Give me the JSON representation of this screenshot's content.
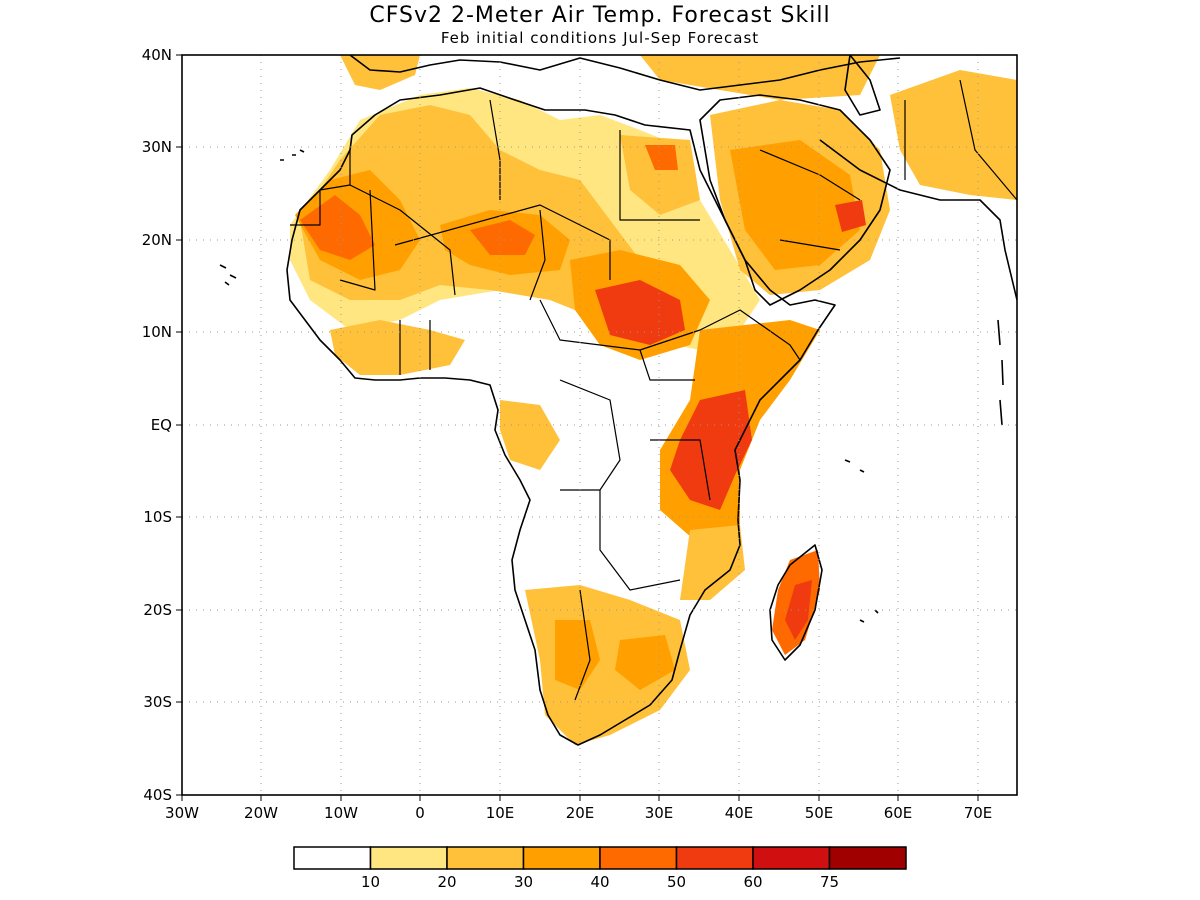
{
  "title": "CFSv2 2-Meter Air Temp. Forecast Skill",
  "subtitle": "Feb initial conditions  Jul-Sep Forecast",
  "lat_ticks": [
    "40N",
    "30N",
    "20N",
    "10N",
    "EQ",
    "10S",
    "20S",
    "30S",
    "40S"
  ],
  "lon_ticks": [
    "30W",
    "20W",
    "10W",
    "0",
    "10E",
    "20E",
    "30E",
    "40E",
    "50E",
    "60E",
    "70E"
  ],
  "colorbar": {
    "labels": [
      "10",
      "20",
      "30",
      "40",
      "50",
      "60",
      "75"
    ],
    "colors": [
      "#ffffff",
      "#ffe680",
      "#ffc03a",
      "#ffa000",
      "#ff6a00",
      "#f03a10",
      "#d01010",
      "#a00000"
    ]
  },
  "skill_regions": [
    {
      "name": "sahara-sahel-west",
      "level": 3
    },
    {
      "name": "sahel-central",
      "level": 4
    },
    {
      "name": "sudan",
      "level": 5
    },
    {
      "name": "arabia",
      "level": 3
    },
    {
      "name": "east-africa",
      "level": 5
    },
    {
      "name": "madagascar",
      "level": 5
    },
    {
      "name": "southern-africa",
      "level": 2
    }
  ]
}
